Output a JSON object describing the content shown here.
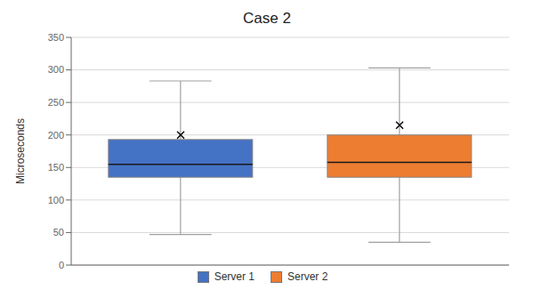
{
  "chart_data": {
    "type": "box",
    "title": "Case 2",
    "ylabel": "Microseconds",
    "ylim": [
      0,
      350
    ],
    "yticks": [
      0,
      50,
      100,
      150,
      200,
      250,
      300,
      350
    ],
    "grid": true,
    "legend": "bottom",
    "tick_labels": "y",
    "series": [
      {
        "name": "Server 1",
        "color": "#4472c4",
        "whisker_low": 47,
        "q1": 135,
        "median": 155,
        "q3": 193,
        "whisker_high": 283,
        "mean": 200
      },
      {
        "name": "Server 2",
        "color": "#ed7d31",
        "whisker_low": 35,
        "q1": 135,
        "median": 158,
        "q3": 200,
        "whisker_high": 303,
        "mean": 215
      }
    ]
  }
}
